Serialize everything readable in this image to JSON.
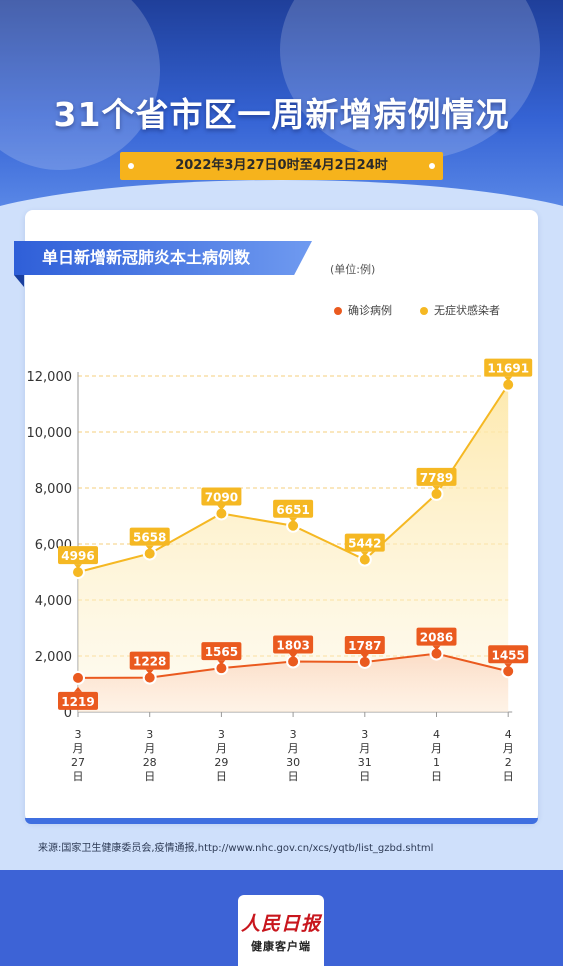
{
  "header": {
    "title": "31个省市区一周新增病例情况",
    "date_range": "2022年3月27日0时至4月2日24时"
  },
  "panel": {
    "banner": "单日新增新冠肺炎本土病例数",
    "unit": "(单位:例)"
  },
  "chart_data": {
    "type": "line",
    "categories": [
      [
        "3",
        "月",
        "27",
        "日"
      ],
      [
        "3",
        "月",
        "28",
        "日"
      ],
      [
        "3",
        "月",
        "29",
        "日"
      ],
      [
        "3",
        "月",
        "30",
        "日"
      ],
      [
        "3",
        "月",
        "31",
        "日"
      ],
      [
        "4",
        "月",
        "1",
        "日"
      ],
      [
        "4",
        "月",
        "2",
        "日"
      ]
    ],
    "series": [
      {
        "name": "确诊病例",
        "values": [
          1219,
          1228,
          1565,
          1803,
          1787,
          2086,
          1455
        ],
        "color": "#ea5a1f"
      },
      {
        "name": "无症状感染者",
        "values": [
          4996,
          5658,
          7090,
          6651,
          5442,
          7789,
          11691
        ],
        "color": "#f5b823"
      }
    ],
    "yticks": [
      "0",
      "2,000",
      "4,000",
      "6,000",
      "8,000",
      "10,000",
      "12,000"
    ],
    "ylim": [
      0,
      12000
    ],
    "legend_position": "top-right",
    "grid": true
  },
  "footer": {
    "source": "来源:国家卫生健康委员会,疫情通报,http://www.nhc.gov.cn/xcs/yqtb/list_gzbd.shtml",
    "logo_brand": "人民日报",
    "logo_sub": "健康客户端"
  },
  "colors": {
    "primary_blue": "#2f5fd8",
    "confirmed": "#ea5a1f",
    "asymptomatic": "#f5b823"
  }
}
